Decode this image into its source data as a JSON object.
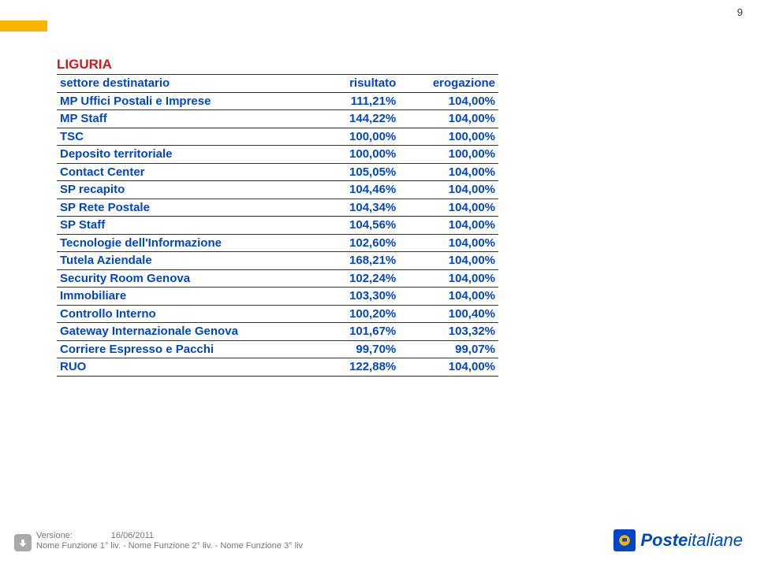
{
  "page_number": "9",
  "accent_bar_color": "#f7b500",
  "title": {
    "text": "LIGURIA",
    "color": "#d11a1a"
  },
  "table": {
    "header_color": "#0046c7",
    "body_color": "#0046c7",
    "columns": [
      "settore destinatario",
      "risultato",
      "erogazione"
    ],
    "rows": [
      [
        "MP Uffici Postali e Imprese",
        "111,21%",
        "104,00%"
      ],
      [
        "MP Staff",
        "144,22%",
        "104,00%"
      ],
      [
        "TSC",
        "100,00%",
        "100,00%"
      ],
      [
        "Deposito territoriale",
        "100,00%",
        "100,00%"
      ],
      [
        "Contact Center",
        "105,05%",
        "104,00%"
      ],
      [
        "SP recapito",
        "104,46%",
        "104,00%"
      ],
      [
        "SP Rete Postale",
        "104,34%",
        "104,00%"
      ],
      [
        "SP Staff",
        "104,56%",
        "104,00%"
      ],
      [
        "Tecnologie dell'Informazione",
        "102,60%",
        "104,00%"
      ],
      [
        "Tutela Aziendale",
        "168,21%",
        "104,00%"
      ],
      [
        "Security Room Genova",
        "102,24%",
        "104,00%"
      ],
      [
        "Immobiliare",
        "103,30%",
        "104,00%"
      ],
      [
        "Controllo Interno",
        "100,20%",
        "100,40%"
      ],
      [
        "Gateway Internazionale Genova",
        "101,67%",
        "103,32%"
      ],
      [
        "Corriere Espresso e Pacchi",
        "99,70%",
        "99,07%"
      ],
      [
        "RUO",
        "122,88%",
        "104,00%"
      ]
    ]
  },
  "footer": {
    "version_label": "Versione:",
    "version_date": "16/06/2011",
    "line2": "Nome Funzione 1° liv. - Nome Funzione  2° liv.  - Nome Funzione  3° liv",
    "logo_company": "Poste",
    "logo_suffix": "italiane",
    "logo_blue": "#0046c7",
    "logo_yellow": "#f7b500"
  }
}
